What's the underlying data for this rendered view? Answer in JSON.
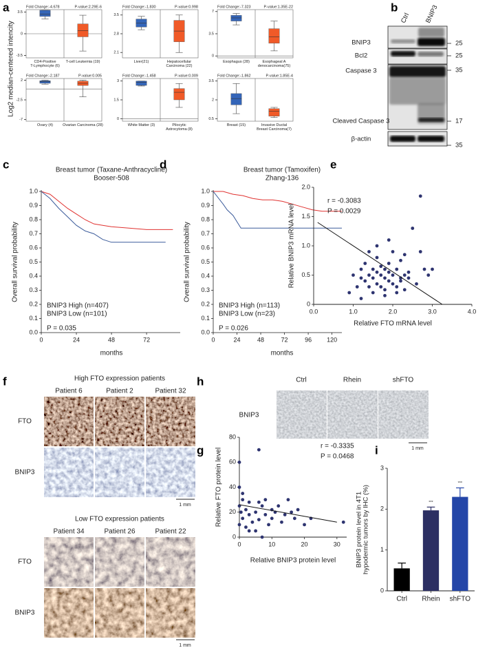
{
  "chart_data": [
    {
      "type": "box",
      "panel": "a",
      "ylabel": "Log2 median-centered intencity",
      "plots": [
        {
          "fold_change": "Fold Change:-4.678",
          "p_value": "P-value:2.29E-6",
          "categories": [
            "CD4-Positive\nT-Lymphocyte (6)",
            "T-cell Leukemia (19)"
          ],
          "ylim": [
            -3.9,
            3.9
          ],
          "yticks": [
            3.5,
            0,
            -3.5
          ],
          "boxes": [
            {
              "whislo": 2.4,
              "q1": 2.8,
              "med": 3.2,
              "q3": 3.8,
              "whishi": 3.8,
              "color": "#3465b8"
            },
            {
              "whislo": -2.8,
              "q1": -0.5,
              "med": 0.5,
              "q3": 1.6,
              "whishi": 3.0,
              "color": "#f05a28"
            }
          ]
        },
        {
          "fold_change": "Fold Change:-1.830",
          "p_value": "P-value:0.998",
          "categories": [
            "Liver(21)",
            "Hepatocellular\nCarcinoma (22)"
          ],
          "ylim": [
            1.9,
            3.7
          ],
          "yticks": [
            3.5,
            2.8,
            2.1
          ],
          "boxes": [
            {
              "whislo": 2.95,
              "q1": 3.05,
              "med": 3.2,
              "q3": 3.35,
              "whishi": 3.45,
              "color": "#3465b8"
            },
            {
              "whislo": 2.1,
              "q1": 2.5,
              "med": 2.9,
              "q3": 3.3,
              "whishi": 3.5,
              "color": "#f05a28"
            }
          ]
        },
        {
          "fold_change": "Fold Change:-7.323",
          "p_value": "P-value:1.35E-22",
          "categories": [
            "Esophagus (28)",
            "Esophageal A\ndenocarcinoma(75)"
          ],
          "ylim": [
            -0.3,
            7.3
          ],
          "yticks": [
            7,
            3.5,
            0
          ],
          "boxes": [
            {
              "whislo": 4.9,
              "q1": 5.5,
              "med": 6.0,
              "q3": 6.4,
              "whishi": 6.7,
              "color": "#3465b8"
            },
            {
              "whislo": 0.8,
              "q1": 2.0,
              "med": 3.0,
              "q3": 4.3,
              "whishi": 5.5,
              "color": "#f05a28"
            }
          ]
        },
        {
          "fold_change": "Fold Change:-2.187",
          "p_value": "P-value:0.005",
          "categories": [
            "Ovary (4)",
            "Ovarian Carcinoma (28)"
          ],
          "ylim": [
            -7.4,
            2.4
          ],
          "yticks": [
            2,
            -2.5,
            -7
          ],
          "boxes": [
            {
              "whislo": 1.1,
              "q1": 1.3,
              "med": 1.7,
              "q3": 1.9,
              "whishi": 2.0,
              "color": "#3465b8"
            },
            {
              "whislo": -1.8,
              "q1": 0.8,
              "med": 1.3,
              "q3": 1.8,
              "whishi": 2.0,
              "color": "#f05a28"
            }
          ]
        },
        {
          "fold_change": "Fold Change:-1.458",
          "p_value": "P-value:0.009",
          "categories": [
            "White Matter (3)",
            "Pilocytic\nAstrocytoma (8)"
          ],
          "ylim": [
            -0.2,
            3.2
          ],
          "yticks": [
            3,
            1.5,
            0
          ],
          "boxes": [
            {
              "whislo": 2.6,
              "q1": 2.65,
              "med": 2.9,
              "q3": 3.0,
              "whishi": 3.0,
              "color": "#3465b8"
            },
            {
              "whislo": 0.9,
              "q1": 1.5,
              "med": 2.1,
              "q3": 2.4,
              "whishi": 2.8,
              "color": "#f05a28"
            }
          ]
        },
        {
          "fold_change": "Fold Change:-1.862",
          "p_value": "P-value:1.85E-4",
          "categories": [
            "Breast (15)",
            "Invasive Ductal\nBreast Carcinoma(7)"
          ],
          "ylim": [
            0.3,
            3.7
          ],
          "yticks": [
            3.5,
            2,
            0.5
          ],
          "boxes": [
            {
              "whislo": 0.9,
              "q1": 1.6,
              "med": 2.1,
              "q3": 2.5,
              "whishi": 3.3,
              "color": "#3465b8"
            },
            {
              "whislo": 0.6,
              "q1": 0.7,
              "med": 1.1,
              "q3": 1.3,
              "whishi": 1.4,
              "color": "#f05a28"
            }
          ]
        }
      ]
    },
    {
      "type": "km",
      "panel": "c",
      "title": "Breast tumor (Taxane-Anthracycline)",
      "subtitle": "Booser-508",
      "xlabel": "months",
      "ylabel": "Overall survival probability",
      "xlim": [
        0,
        95
      ],
      "xticks": [
        0,
        24,
        48,
        72
      ],
      "ylim": [
        0,
        1
      ],
      "yticks": [
        {
          "value": 0,
          "label": "0.0"
        },
        0.1,
        0.2,
        0.3,
        0.4,
        0.5,
        0.6,
        0.7,
        0.8,
        0.9,
        {
          "value": 1,
          "label": "1.0"
        }
      ],
      "series": [
        {
          "name": "BNIP3 High (n=407)",
          "color": "#e0312f",
          "x": [
            0,
            6,
            12,
            18,
            24,
            30,
            36,
            42,
            48,
            60,
            72,
            90
          ],
          "values": [
            1,
            0.98,
            0.93,
            0.88,
            0.84,
            0.8,
            0.77,
            0.76,
            0.75,
            0.74,
            0.73,
            0.73
          ]
        },
        {
          "name": "BNIP3 Low (n=101)",
          "color": "#3a5a9a",
          "x": [
            0,
            6,
            12,
            18,
            24,
            30,
            36,
            42,
            48,
            60,
            72,
            85
          ],
          "values": [
            1,
            0.95,
            0.88,
            0.82,
            0.76,
            0.72,
            0.7,
            0.66,
            0.64,
            0.64,
            0.64,
            0.64
          ]
        }
      ],
      "annotation": "P = 0.035"
    },
    {
      "type": "km",
      "panel": "d",
      "title": "Breast tumor (Tamoxifen)",
      "subtitle": "Zhang-136",
      "xlabel": "months",
      "ylabel": "Overall survival probability",
      "xlim": [
        0,
        130
      ],
      "xticks": [
        0,
        24,
        48,
        72,
        96,
        120
      ],
      "ylim": [
        0,
        1
      ],
      "yticks": [
        {
          "value": 0,
          "label": "0.0"
        },
        0.1,
        0.2,
        0.3,
        0.4,
        0.5,
        0.6,
        0.7,
        0.8,
        0.9,
        {
          "value": 1,
          "label": "1.0"
        }
      ],
      "series": [
        {
          "name": "BNIP3 High (n=113)",
          "color": "#e0312f",
          "x": [
            0,
            10,
            20,
            30,
            40,
            50,
            60,
            70,
            80,
            90,
            100,
            110,
            120,
            130
          ],
          "values": [
            1,
            1,
            0.98,
            0.97,
            0.95,
            0.94,
            0.94,
            0.93,
            0.91,
            0.89,
            0.87,
            0.86,
            0.86,
            0.86
          ]
        },
        {
          "name": "BNIP3 Low (n=23)",
          "color": "#3a5a9a",
          "x": [
            0,
            10,
            14,
            20,
            28,
            48,
            130
          ],
          "values": [
            1,
            0.91,
            0.87,
            0.83,
            0.74,
            0.74,
            0.74
          ]
        }
      ],
      "annotation": "P = 0.026"
    },
    {
      "type": "scatter",
      "panel": "e",
      "xlabel": "Relative FTO mRNA level",
      "ylabel": "Relative BNIP3 mRNA level",
      "color": "#2e3470",
      "xlim": [
        0,
        4
      ],
      "xticks": [
        {
          "value": 0,
          "label": "0.0"
        },
        {
          "value": 1,
          "label": "1.0"
        },
        {
          "value": 2,
          "label": "2.0"
        },
        {
          "value": 3,
          "label": "3.0"
        },
        {
          "value": 4,
          "label": "4.0"
        }
      ],
      "ylim": [
        0,
        2
      ],
      "yticks": [
        0,
        0.5,
        {
          "value": 1,
          "label": "1.0"
        },
        1.5,
        {
          "value": 2,
          "label": "2.0"
        }
      ],
      "x": [
        0.9,
        1.0,
        1.1,
        1.2,
        1.2,
        1.3,
        1.3,
        1.4,
        1.4,
        1.5,
        1.5,
        1.5,
        1.6,
        1.6,
        1.6,
        1.7,
        1.7,
        1.7,
        1.8,
        1.8,
        1.8,
        1.9,
        1.9,
        1.9,
        2.0,
        2.0,
        2.0,
        2.1,
        2.1,
        2.2,
        2.2,
        2.3,
        2.3,
        2.4,
        2.5,
        2.6,
        2.7,
        2.8,
        3.0,
        1.4,
        1.6,
        1.9,
        2.1,
        2.4,
        2.9,
        1.2,
        1.8,
        2.2,
        2.7,
        2.3
      ],
      "values": [
        0.2,
        0.5,
        0.3,
        0.6,
        0.1,
        0.4,
        0.7,
        0.3,
        0.5,
        0.2,
        0.6,
        0.45,
        0.35,
        0.55,
        0.8,
        0.3,
        0.5,
        0.65,
        0.25,
        0.45,
        0.6,
        0.4,
        0.55,
        0.7,
        0.35,
        0.5,
        0.9,
        0.3,
        0.6,
        0.45,
        0.4,
        0.5,
        0.25,
        0.55,
        1.3,
        0.35,
        1.85,
        0.6,
        0.6,
        0.9,
        1.0,
        1.1,
        0.2,
        0.45,
        0.5,
        0.45,
        0.15,
        0.75,
        0.9,
        0.85
      ],
      "fit": {
        "x": [
          0.1,
          3.25
        ],
        "y": [
          1.4,
          0
        ]
      },
      "annotations": [
        "r = -0.3083",
        "P = 0.0029"
      ]
    },
    {
      "type": "scatter",
      "panel": "g",
      "xlabel": "Relative BNIP3 protein level",
      "ylabel": "Relative FTO protein level",
      "color": "#2e3470",
      "xlim": [
        0,
        33
      ],
      "xticks": [
        0,
        10,
        20,
        30
      ],
      "ylim": [
        0,
        80
      ],
      "yticks": [
        0,
        20,
        40,
        60,
        80
      ],
      "x": [
        0,
        0,
        0,
        0,
        0.5,
        1,
        1,
        2,
        2,
        3,
        3,
        4,
        5,
        5,
        6,
        6,
        7,
        7,
        8,
        8,
        9,
        10,
        10,
        11,
        12,
        13,
        14,
        15,
        16,
        17,
        18,
        20,
        22,
        32,
        6,
        1,
        3
      ],
      "values": [
        60,
        40,
        25,
        10,
        20,
        30,
        15,
        22,
        8,
        18,
        28,
        12,
        20,
        5,
        70,
        14,
        25,
        0,
        18,
        30,
        10,
        22,
        15,
        20,
        25,
        12,
        18,
        30,
        20,
        15,
        22,
        10,
        15,
        12,
        28,
        35,
        5
      ],
      "fit": {
        "x": [
          0,
          30
        ],
        "y": [
          26,
          12
        ]
      },
      "annotations": [
        "r = -0.3335",
        "P = 0.0468"
      ]
    },
    {
      "type": "bar",
      "panel": "i",
      "ylabel": "BNIP3 protein level in 4T1\nhypodermic tumors by IHC (%)",
      "categories": [
        "Ctrl",
        "Rhein",
        "shFTO"
      ],
      "values": [
        0.55,
        1.97,
        2.3
      ],
      "errors": [
        0.13,
        0.08,
        0.22
      ],
      "colors": [
        "#000000",
        "#2c2f63",
        "#2446a8"
      ],
      "significance": [
        null,
        "***",
        "***"
      ],
      "ylim": [
        0,
        3
      ],
      "yticks": [
        0,
        1,
        2,
        3
      ]
    }
  ],
  "blot": {
    "panel": "b",
    "lanes": [
      "Ctrl",
      "BNIP3"
    ],
    "rows": [
      "BNIP3",
      "Bcl2",
      "Caspase 3",
      "Cleaved Caspase 3",
      "β-actin"
    ],
    "markers": [
      25,
      25,
      35,
      17,
      35
    ]
  },
  "ihc_f": {
    "panel": "f",
    "groups": [
      {
        "title": "High FTO expression patients",
        "patients": [
          "Patient 6",
          "Patient 2",
          "Patient 32"
        ],
        "rows": [
          "FTO",
          "BNIP3"
        ],
        "scale": "1 mm"
      },
      {
        "title": "Low FTO expression patients",
        "patients": [
          "Patient 34",
          "Patient 26",
          "Patient 22"
        ],
        "rows": [
          "FTO",
          "BNIP3"
        ],
        "scale": "1 mm"
      }
    ]
  },
  "ihc_h": {
    "panel": "h",
    "conditions": [
      "Ctrl",
      "Rhein",
      "shFTO"
    ],
    "row": "BNIP3",
    "scale": "1 mm"
  }
}
